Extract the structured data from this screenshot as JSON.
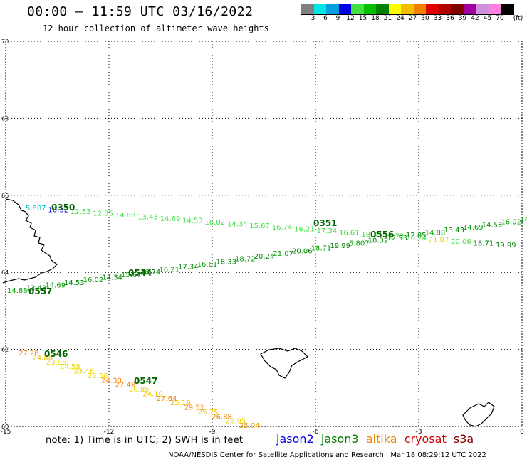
{
  "header": {
    "title": "00:00 – 11:59 UTC 03/16/2022",
    "subtitle": "12 hour collection of altimeter wave heights"
  },
  "color_scale": {
    "unit_label": "(ft)",
    "ticks": [
      "3",
      "6",
      "9",
      "12",
      "15",
      "18",
      "21",
      "24",
      "27",
      "30",
      "33",
      "36",
      "39",
      "42",
      "45",
      "70"
    ],
    "colors": [
      "#808080",
      "#00e5e5",
      "#00a0e0",
      "#0000e0",
      "#40e040",
      "#00c000",
      "#008000",
      "#ffff00",
      "#f0c000",
      "#f08000",
      "#e00000",
      "#b00000",
      "#800000",
      "#a000a0",
      "#d090e0",
      "#ff80e0",
      "#000000"
    ]
  },
  "map": {
    "x_ticks": [
      "-15",
      "-12",
      "-9",
      "-6",
      "-3",
      "0"
    ],
    "y_ticks": [
      "70",
      "68",
      "66",
      "64",
      "62",
      "60"
    ],
    "lon_range": [
      -15,
      0
    ],
    "lat_range": [
      60,
      70
    ],
    "grid": "dotted"
  },
  "tracks": {
    "track_a": {
      "time_labels": [
        "0350",
        "0351",
        "0556",
        "0544",
        "0557"
      ],
      "wave_labels": [
        "5.807",
        "10.32",
        "12.53",
        "12.85",
        "14.88",
        "13.43",
        "14.69",
        "14.53",
        "16.02",
        "14.34",
        "15.67",
        "16.74",
        "16.21",
        "17.34",
        "16.61",
        "18.33",
        "18.72",
        "20.24",
        "21.07",
        "20.06",
        "18.71",
        "19.99"
      ]
    },
    "track_b": {
      "time_labels": [
        "0546",
        "0547"
      ],
      "wave_labels": [
        "27.28",
        "24.88",
        "23.85",
        "24.58",
        "23.46",
        "23.56",
        "24.30",
        "27.48",
        "20.85",
        "24.10",
        "27.64",
        "25.19",
        "29.51",
        "25.75",
        "26.88",
        "26.95",
        "25.04"
      ]
    }
  },
  "note": "note: 1) Time is in UTC; 2) SWH is in feet",
  "satellites": [
    {
      "name": "jason2",
      "color": "#0000e0"
    },
    {
      "name": "jason3",
      "color": "#008000"
    },
    {
      "name": "altika",
      "color": "#f08000"
    },
    {
      "name": "cryosat",
      "color": "#d00000"
    },
    {
      "name": "s3a",
      "color": "#800000"
    }
  ],
  "credit": "NOAA/NESDIS Center for Satellite Applications and Research   Mar 18 08:29:12 UTC 2022"
}
